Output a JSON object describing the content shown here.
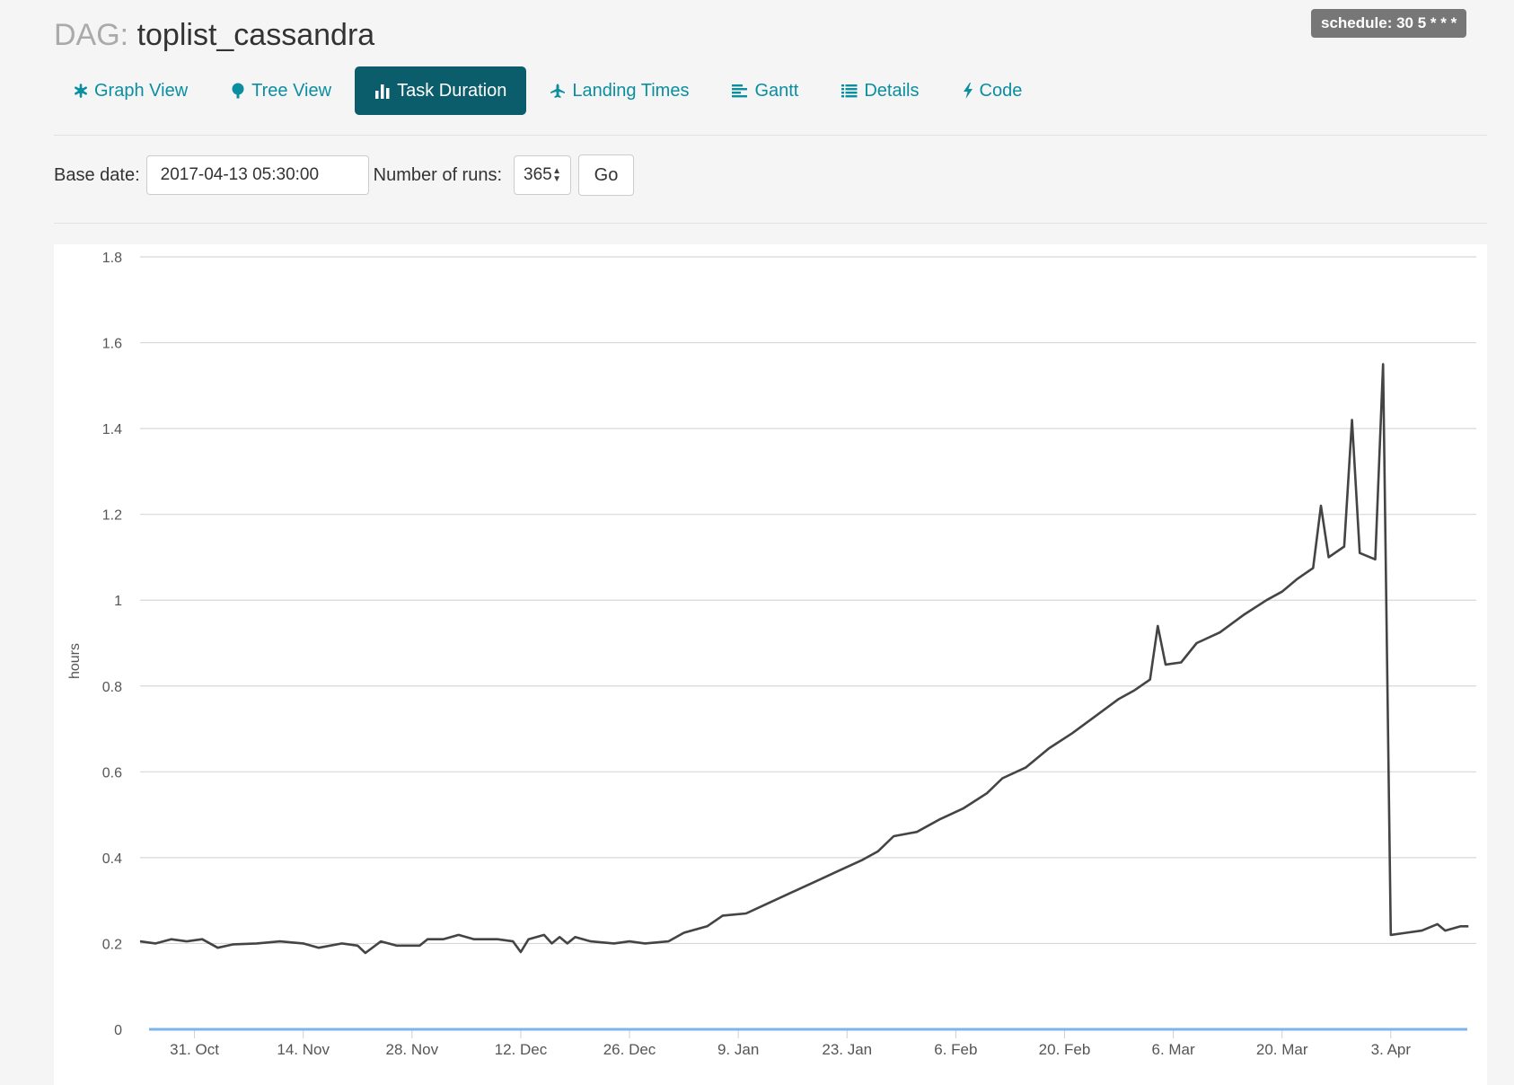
{
  "header": {
    "schedule_badge": "schedule: 30 5 * * *",
    "title_prefix": "DAG:",
    "dag_id": "toplist_cassandra"
  },
  "nav": {
    "tabs": [
      {
        "label": "Graph View",
        "icon": "asterisk-icon"
      },
      {
        "label": "Tree View",
        "icon": "tree-icon"
      },
      {
        "label": "Task Duration",
        "icon": "bar-chart-icon",
        "active": true
      },
      {
        "label": "Landing Times",
        "icon": "plane-icon"
      },
      {
        "label": "Gantt",
        "icon": "align-left-icon"
      },
      {
        "label": "Details",
        "icon": "list-icon"
      },
      {
        "label": "Code",
        "icon": "flash-icon"
      }
    ]
  },
  "form": {
    "base_date_label": "Base date:",
    "base_date_value": "2017-04-13 05:30:00",
    "num_runs_label": "Number of runs:",
    "num_runs_value": "365",
    "go_label": "Go"
  },
  "colors": {
    "accent": "#0a8ea0",
    "active_tab": "#0b5d6b",
    "series_line": "#444444",
    "baseline": "#7cb5ec"
  },
  "chart_data": {
    "type": "line",
    "ylabel": "hours",
    "ylim": [
      0,
      1.8
    ],
    "yticks": [
      "0",
      "0.2",
      "0.4",
      "0.6",
      "0.8",
      "1",
      "1.2",
      "1.4",
      "1.6",
      "1.8"
    ],
    "xtick_labels": [
      "31. Oct",
      "14. Nov",
      "28. Nov",
      "12. Dec",
      "26. Dec",
      "9. Jan",
      "23. Jan",
      "6. Feb",
      "20. Feb",
      "6. Mar",
      "20. Mar",
      "3. Apr"
    ],
    "xtick_dates": [
      "2016-10-31",
      "2016-11-14",
      "2016-11-28",
      "2016-12-12",
      "2016-12-26",
      "2017-01-09",
      "2017-01-23",
      "2017-02-06",
      "2017-02-20",
      "2017-03-06",
      "2017-03-20",
      "2017-04-03"
    ],
    "xlim": [
      "2016-10-24",
      "2017-04-14"
    ],
    "grid": true,
    "series": [
      {
        "points": [
          [
            "2016-10-24",
            0.205
          ],
          [
            "2016-10-26",
            0.2
          ],
          [
            "2016-10-28",
            0.21
          ],
          [
            "2016-10-30",
            0.205
          ],
          [
            "2016-11-01",
            0.21
          ],
          [
            "2016-11-03",
            0.19
          ],
          [
            "2016-11-05",
            0.198
          ],
          [
            "2016-11-08",
            0.2
          ],
          [
            "2016-11-11",
            0.205
          ],
          [
            "2016-11-14",
            0.2
          ],
          [
            "2016-11-16",
            0.19
          ],
          [
            "2016-11-19",
            0.2
          ],
          [
            "2016-11-21",
            0.195
          ],
          [
            "2016-11-22",
            0.178
          ],
          [
            "2016-11-24",
            0.205
          ],
          [
            "2016-11-26",
            0.195
          ],
          [
            "2016-11-29",
            0.195
          ],
          [
            "2016-11-30",
            0.21
          ],
          [
            "2016-12-02",
            0.21
          ],
          [
            "2016-12-04",
            0.22
          ],
          [
            "2016-12-06",
            0.21
          ],
          [
            "2016-12-09",
            0.21
          ],
          [
            "2016-12-11",
            0.205
          ],
          [
            "2016-12-12",
            0.18
          ],
          [
            "2016-12-13",
            0.21
          ],
          [
            "2016-12-15",
            0.22
          ],
          [
            "2016-12-16",
            0.2
          ],
          [
            "2016-12-17",
            0.215
          ],
          [
            "2016-12-18",
            0.2
          ],
          [
            "2016-12-19",
            0.215
          ],
          [
            "2016-12-21",
            0.205
          ],
          [
            "2016-12-24",
            0.2
          ],
          [
            "2016-12-26",
            0.205
          ],
          [
            "2016-12-28",
            0.2
          ],
          [
            "2016-12-31",
            0.205
          ],
          [
            "2017-01-02",
            0.225
          ],
          [
            "2017-01-05",
            0.24
          ],
          [
            "2017-01-07",
            0.265
          ],
          [
            "2017-01-10",
            0.27
          ],
          [
            "2017-01-13",
            0.295
          ],
          [
            "2017-01-16",
            0.32
          ],
          [
            "2017-01-19",
            0.345
          ],
          [
            "2017-01-22",
            0.37
          ],
          [
            "2017-01-25",
            0.395
          ],
          [
            "2017-01-27",
            0.415
          ],
          [
            "2017-01-29",
            0.45
          ],
          [
            "2017-02-01",
            0.46
          ],
          [
            "2017-02-04",
            0.49
          ],
          [
            "2017-02-07",
            0.515
          ],
          [
            "2017-02-10",
            0.55
          ],
          [
            "2017-02-12",
            0.585
          ],
          [
            "2017-02-15",
            0.61
          ],
          [
            "2017-02-18",
            0.655
          ],
          [
            "2017-02-21",
            0.69
          ],
          [
            "2017-02-24",
            0.73
          ],
          [
            "2017-02-27",
            0.77
          ],
          [
            "2017-03-01",
            0.79
          ],
          [
            "2017-03-03",
            0.815
          ],
          [
            "2017-03-04",
            0.94
          ],
          [
            "2017-03-05",
            0.85
          ],
          [
            "2017-03-07",
            0.855
          ],
          [
            "2017-03-09",
            0.9
          ],
          [
            "2017-03-12",
            0.925
          ],
          [
            "2017-03-15",
            0.965
          ],
          [
            "2017-03-18",
            1.0
          ],
          [
            "2017-03-20",
            1.02
          ],
          [
            "2017-03-22",
            1.05
          ],
          [
            "2017-03-24",
            1.075
          ],
          [
            "2017-03-25",
            1.22
          ],
          [
            "2017-03-26",
            1.1
          ],
          [
            "2017-03-28",
            1.125
          ],
          [
            "2017-03-29",
            1.42
          ],
          [
            "2017-03-30",
            1.11
          ],
          [
            "2017-04-01",
            1.095
          ],
          [
            "2017-04-02",
            1.55
          ],
          [
            "2017-04-03",
            0.22
          ],
          [
            "2017-04-05",
            0.225
          ],
          [
            "2017-04-07",
            0.23
          ],
          [
            "2017-04-09",
            0.245
          ],
          [
            "2017-04-10",
            0.23
          ],
          [
            "2017-04-12",
            0.24
          ],
          [
            "2017-04-13",
            0.24
          ]
        ]
      }
    ]
  }
}
